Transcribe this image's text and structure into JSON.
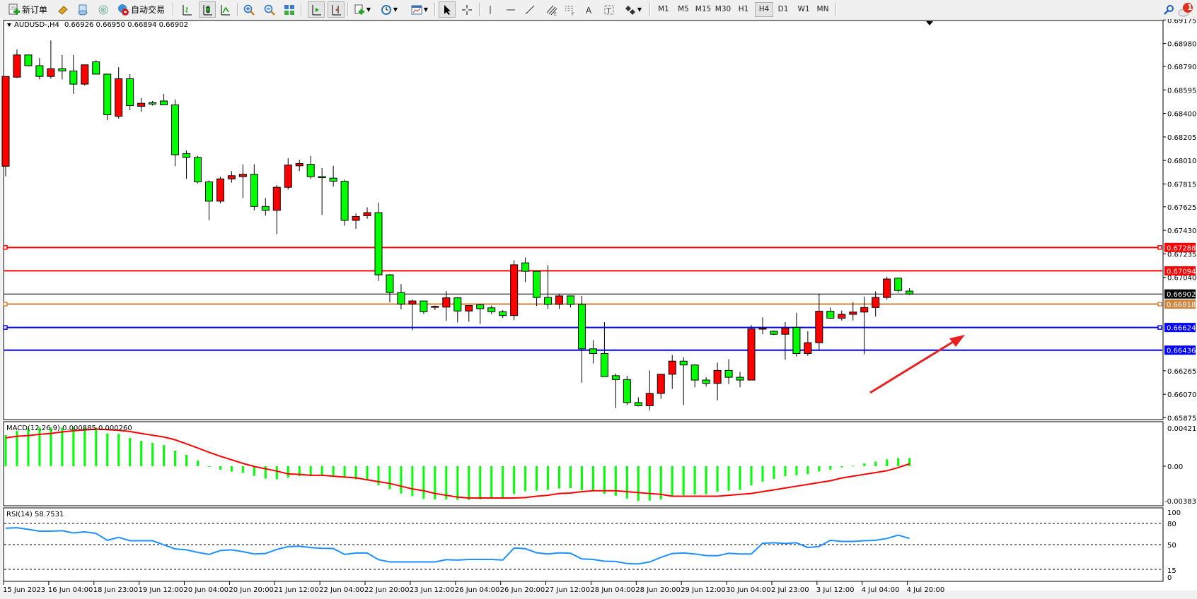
{
  "toolbar": {
    "new_order": "新订单",
    "auto_trading": "自动交易",
    "timeframes": [
      "M1",
      "M5",
      "M15",
      "M30",
      "H1",
      "H4",
      "D1",
      "W1",
      "MN"
    ],
    "active_timeframe": "H4",
    "notification_count": "1",
    "icons": [
      "new-order-icon",
      "gold-bars-icon",
      "history-center-icon",
      "signals-icon",
      "auto-trading-icon",
      "bar-chart-icon",
      "candlestick-icon",
      "line-chart-icon",
      "zoom-in-icon",
      "zoom-out-icon",
      "tile-windows-icon",
      "auto-scroll-icon",
      "chart-shift-icon",
      "indicators-icon",
      "periods-icon",
      "templates-icon",
      "cursor-icon",
      "crosshair-icon",
      "vertical-line-icon",
      "horizontal-line-icon",
      "trendline-icon",
      "equidistant-channel-icon",
      "fibonacci-icon",
      "text-icon",
      "text-label-icon",
      "arrows-icon",
      "search-icon",
      "notification-icon"
    ]
  },
  "chart": {
    "symbol": "AUDUSD-,H4",
    "ohlc": "0.66926 0.66950 0.66894 0.66902",
    "price_ticks": [
      "0.69175",
      "0.68980",
      "0.68790",
      "0.68595",
      "0.68400",
      "0.68205",
      "0.68010",
      "0.67815",
      "0.67625",
      "0.67430",
      "0.67235",
      "0.67040",
      "0.66265",
      "0.66070",
      "0.65875"
    ],
    "levels": [
      {
        "price": "0.67288",
        "color": "#ff0000",
        "marker": true
      },
      {
        "price": "0.67094",
        "color": "#ff0000",
        "marker": false
      },
      {
        "price": "0.66902",
        "color": "#000000",
        "marker": false
      },
      {
        "price": "0.66818",
        "color": "#cd853f",
        "marker": true
      },
      {
        "price": "0.66624",
        "color": "#0000ff",
        "marker": true
      },
      {
        "price": "0.66436",
        "color": "#0000ff",
        "marker": false
      }
    ],
    "up_color": "#ff0000",
    "down_color": "#00ff00",
    "annotation_arrow_color": "#e82020",
    "time_labels": [
      "15 Jun 2023",
      "16 Jun 04:00",
      "18 Jun 23:00",
      "19 Jun 12:00",
      "20 Jun 04:00",
      "20 Jun 20:00",
      "21 Jun 12:00",
      "22 Jun 04:00",
      "22 Jun 20:00",
      "23 Jun 12:00",
      "26 Jun 04:00",
      "26 Jun 20:00",
      "27 Jun 12:00",
      "28 Jun 04:00",
      "28 Jun 20:00",
      "29 Jun 12:00",
      "30 Jun 04:00",
      "2 Jul 23:00",
      "3 Jul 12:00",
      "4 Jul 04:00",
      "4 Jul 20:00"
    ]
  },
  "macd": {
    "label": "MACD(12,26,9) 0.000885 0.000260",
    "axis": [
      "0.004215",
      "0.00",
      "-0.003835"
    ]
  },
  "rsi": {
    "label": "RSI(14) 58.7531",
    "axis": [
      "100",
      "80",
      "50",
      "15",
      "0"
    ]
  },
  "chart_data": [
    {
      "type": "candlestick",
      "ylim": [
        0.6586,
        0.69171
      ],
      "ohlc": [
        [
          0.67962,
          0.68707,
          0.67879,
          0.68707
        ],
        [
          0.68701,
          0.6893,
          0.68694,
          0.68885
        ],
        [
          0.68885,
          0.68885,
          0.68796,
          0.68796
        ],
        [
          0.68796,
          0.6886,
          0.68682,
          0.68707
        ],
        [
          0.68707,
          0.69006,
          0.68688,
          0.68771
        ],
        [
          0.68771,
          0.68885,
          0.68682,
          0.68752
        ],
        [
          0.68752,
          0.68885,
          0.68561,
          0.68643
        ],
        [
          0.68643,
          0.68803,
          0.68631,
          0.68803
        ],
        [
          0.68828,
          0.6884,
          0.68726,
          0.68726
        ],
        [
          0.68726,
          0.68726,
          0.68344,
          0.68389
        ],
        [
          0.68376,
          0.68783,
          0.68357,
          0.68688
        ],
        [
          0.68688,
          0.68726,
          0.68427,
          0.68465
        ],
        [
          0.68459,
          0.68529,
          0.68414,
          0.68484
        ],
        [
          0.6849,
          0.68503,
          0.68465,
          0.68478
        ],
        [
          0.68503,
          0.68561,
          0.68471,
          0.68471
        ],
        [
          0.68471,
          0.68516,
          0.67962,
          0.68057
        ],
        [
          0.68067,
          0.68093,
          0.67857,
          0.68035
        ],
        [
          0.68035,
          0.68048,
          0.67819,
          0.67832
        ],
        [
          0.67832,
          0.67844,
          0.67513,
          0.67672
        ],
        [
          0.67672,
          0.67876,
          0.67653,
          0.67857
        ],
        [
          0.67857,
          0.67921,
          0.67825,
          0.67883
        ],
        [
          0.67876,
          0.67978,
          0.67698,
          0.67895
        ],
        [
          0.67895,
          0.67978,
          0.67596,
          0.67628
        ],
        [
          0.67628,
          0.67698,
          0.67551,
          0.67596
        ],
        [
          0.67596,
          0.67806,
          0.67398,
          0.67787
        ],
        [
          0.67787,
          0.68029,
          0.67768,
          0.67972
        ],
        [
          0.67965,
          0.68016,
          0.67921,
          0.67984
        ],
        [
          0.67978,
          0.68048,
          0.67857,
          0.67876
        ],
        [
          0.67876,
          0.67946,
          0.67558,
          0.6787
        ],
        [
          0.67863,
          0.67965,
          0.67793,
          0.67838
        ],
        [
          0.67838,
          0.67851,
          0.67468,
          0.67513
        ],
        [
          0.67513,
          0.6757,
          0.67443,
          0.67545
        ],
        [
          0.67551,
          0.67621,
          0.67526,
          0.67577
        ],
        [
          0.67577,
          0.6766,
          0.6701,
          0.67061
        ],
        [
          0.67061,
          0.67067,
          0.66832,
          0.66914
        ],
        [
          0.66914,
          0.66984,
          0.66774,
          0.66819
        ],
        [
          0.66819,
          0.66857,
          0.66602,
          0.66844
        ],
        [
          0.66844,
          0.66844,
          0.66736,
          0.66755
        ],
        [
          0.668,
          0.66806,
          0.66768,
          0.668
        ],
        [
          0.66793,
          0.66927,
          0.66679,
          0.6687
        ],
        [
          0.6687,
          0.66876,
          0.66666,
          0.66761
        ],
        [
          0.66761,
          0.66806,
          0.66672,
          0.66806
        ],
        [
          0.66812,
          0.66819,
          0.66653,
          0.6678
        ],
        [
          0.66787,
          0.66806,
          0.66736,
          0.66755
        ],
        [
          0.66755,
          0.66768,
          0.66704,
          0.66723
        ],
        [
          0.66723,
          0.67182,
          0.66685,
          0.67144
        ],
        [
          0.6716,
          0.67205,
          0.67001,
          0.6709
        ],
        [
          0.6709,
          0.6709,
          0.66803,
          0.66873
        ],
        [
          0.66873,
          0.67141,
          0.66778,
          0.66816
        ],
        [
          0.66816,
          0.66905,
          0.66778,
          0.66886
        ],
        [
          0.66886,
          0.66886,
          0.6679,
          0.66816
        ],
        [
          0.66816,
          0.66886,
          0.66166,
          0.66447
        ],
        [
          0.66447,
          0.66517,
          0.66326,
          0.66408
        ],
        [
          0.66408,
          0.66669,
          0.66217,
          0.66217
        ],
        [
          0.66224,
          0.66243,
          0.65956,
          0.66192
        ],
        [
          0.66192,
          0.66224,
          0.65981,
          0.66001
        ],
        [
          0.66001,
          0.66045,
          0.65969,
          0.65975
        ],
        [
          0.65975,
          0.66268,
          0.65937,
          0.66077
        ],
        [
          0.66077,
          0.66236,
          0.66032,
          0.66236
        ],
        [
          0.66236,
          0.66396,
          0.66115,
          0.66345
        ],
        [
          0.66345,
          0.66377,
          0.65981,
          0.66313
        ],
        [
          0.66313,
          0.66319,
          0.66128,
          0.66188
        ],
        [
          0.66188,
          0.66211,
          0.66134,
          0.6616
        ],
        [
          0.6616,
          0.66332,
          0.6602,
          0.66268
        ],
        [
          0.66268,
          0.66361,
          0.66154,
          0.66211
        ],
        [
          0.66211,
          0.66256,
          0.66128,
          0.66188
        ],
        [
          0.66188,
          0.66644,
          0.66188,
          0.66612
        ],
        [
          0.66612,
          0.66708,
          0.66568,
          0.66619
        ],
        [
          0.66593,
          0.66599,
          0.66561,
          0.66568
        ],
        [
          0.66568,
          0.66669,
          0.66357,
          0.66619
        ],
        [
          0.66625,
          0.66746,
          0.66383,
          0.66408
        ],
        [
          0.66408,
          0.66593,
          0.66389,
          0.66498
        ],
        [
          0.66498,
          0.66905,
          0.6644,
          0.66759
        ],
        [
          0.66759,
          0.6679,
          0.66695,
          0.66701
        ],
        [
          0.66701,
          0.66765,
          0.66682,
          0.66733
        ],
        [
          0.66733,
          0.66835,
          0.66682,
          0.66752
        ],
        [
          0.66752,
          0.6688,
          0.66402,
          0.6679
        ],
        [
          0.6679,
          0.66924,
          0.66714,
          0.66873
        ],
        [
          0.66873,
          0.67045,
          0.66854,
          0.67026
        ],
        [
          0.67033,
          0.67033,
          0.66912,
          0.66931
        ],
        [
          0.66926,
          0.6695,
          0.66894,
          0.66902
        ]
      ]
    },
    {
      "type": "bar",
      "ylim": [
        -0.00435,
        0.00489
      ],
      "histogram": [
        0.00342,
        0.00389,
        0.00414,
        0.00425,
        0.00425,
        0.00425,
        0.00425,
        0.0042,
        0.00425,
        0.0036,
        0.00355,
        0.00311,
        0.0028,
        0.00256,
        0.00233,
        0.00171,
        0.00124,
        0.00062,
        -3e-05,
        -0.00039,
        -0.0006,
        -0.00075,
        -0.00106,
        -0.00137,
        -0.00145,
        -0.00125,
        -0.0011,
        -0.0011,
        -0.001,
        -0.001,
        -0.0013,
        -0.00145,
        -0.00155,
        -0.0021,
        -0.00253,
        -0.003,
        -0.0033,
        -0.0036,
        -0.00365,
        -0.00365,
        -0.0037,
        -0.0037,
        -0.00365,
        -0.0035,
        -0.0035,
        -0.00305,
        -0.00275,
        -0.0027,
        -0.0026,
        -0.00245,
        -0.0024,
        -0.00265,
        -0.0027,
        -0.00305,
        -0.00325,
        -0.00355,
        -0.0038,
        -0.00378,
        -0.00365,
        -0.0033,
        -0.0032,
        -0.0031,
        -0.0031,
        -0.00283,
        -0.0027,
        -0.0026,
        -0.0021,
        -0.0017,
        -0.0014,
        -0.0011,
        -0.001,
        -0.00088,
        -0.00058,
        -0.00038,
        -0.00013,
        5e-05,
        0.0003,
        0.0005,
        0.00075,
        0.00088,
        0.000885
      ],
      "signal": [
        0.00311,
        0.00329,
        0.00337,
        0.0035,
        0.0036,
        0.00376,
        0.00389,
        0.00399,
        0.00407,
        0.00402,
        0.00394,
        0.00381,
        0.0036,
        0.0034,
        0.00321,
        0.0029,
        0.00246,
        0.002,
        0.00153,
        0.00109,
        0.0007,
        0.00031,
        -3e-05,
        -0.00028,
        -0.00054,
        -0.00085,
        -0.0009,
        -0.001,
        -0.001,
        -0.0011,
        -0.0012,
        -0.00128,
        -0.0015,
        -0.0017,
        -0.0019,
        -0.0022,
        -0.0025,
        -0.0027,
        -0.003,
        -0.0032,
        -0.0034,
        -0.0035,
        -0.0035,
        -0.0035,
        -0.0035,
        -0.0035,
        -0.00345,
        -0.0033,
        -0.0032,
        -0.003,
        -0.00295,
        -0.0028,
        -0.0027,
        -0.0027,
        -0.0027,
        -0.0028,
        -0.0029,
        -0.003,
        -0.0031,
        -0.0033,
        -0.0033,
        -0.0033,
        -0.0033,
        -0.0033,
        -0.0032,
        -0.0031,
        -0.003,
        -0.0028,
        -0.0026,
        -0.0024,
        -0.0022,
        -0.002,
        -0.0018,
        -0.0016,
        -0.0013,
        -0.0011,
        -0.0009,
        -0.0007,
        -0.0005,
        -0.00015,
        0.00026
      ],
      "histogram_color": "#00ff00",
      "signal_color": "#ff0000"
    },
    {
      "type": "line",
      "ylim": [
        -2,
        102
      ],
      "levels": [
        80,
        50,
        15
      ],
      "values": [
        73.2,
        73.9,
        71.6,
        69,
        69,
        69.7,
        66.5,
        68.1,
        65.8,
        56.1,
        60.3,
        55.5,
        55.5,
        55.5,
        49.7,
        43.9,
        42.6,
        39,
        36.1,
        41.6,
        42.6,
        40,
        36.8,
        37.4,
        43.2,
        47.1,
        47.7,
        45.8,
        44.8,
        44.5,
        36.1,
        38.1,
        38.1,
        28.7,
        25.5,
        25.5,
        25.5,
        25.5,
        25.5,
        28.7,
        28.1,
        29,
        29,
        29,
        28.1,
        45.2,
        44.2,
        38.4,
        36.8,
        38.4,
        37.7,
        29.7,
        29,
        26.5,
        26.1,
        23.2,
        22.6,
        25.5,
        31.9,
        37.4,
        38.1,
        36.8,
        34.5,
        34.2,
        37.7,
        36.8,
        36.8,
        51.9,
        52.6,
        51.6,
        52.6,
        45.8,
        47.4,
        56.1,
        54.5,
        54.5,
        55.5,
        56.1,
        58.7,
        63.5,
        58.7531
      ],
      "color": "#1e90ff"
    }
  ]
}
